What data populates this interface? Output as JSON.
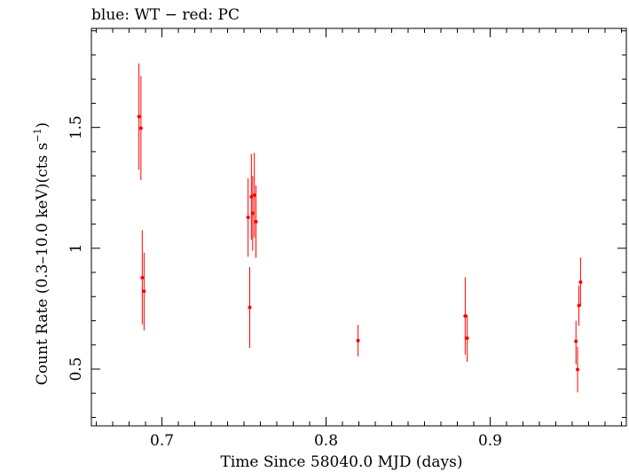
{
  "chart_data": {
    "type": "scatter",
    "title": "blue: WT − red: PC",
    "xlabel": "Time Since 58040.0 MJD (days)",
    "ylabel_main": "Count Rate (0.3–10.0 keV)(cts s",
    "ylabel_sup": "−1",
    "ylabel_close": ")",
    "xlim": [
      0.657,
      0.983
    ],
    "ylim": [
      0.265,
      1.91
    ],
    "xticks": [
      {
        "v": 0.7,
        "label": "0.7"
      },
      {
        "v": 0.8,
        "label": "0.8"
      },
      {
        "v": 0.9,
        "label": "0.9"
      }
    ],
    "yticks": [
      {
        "v": 0.5,
        "label": "0.5"
      },
      {
        "v": 1.0,
        "label": "1"
      },
      {
        "v": 1.5,
        "label": "1.5"
      }
    ],
    "series": [
      {
        "name": "PC",
        "color": "#ff0000",
        "points": [
          {
            "x": 0.686,
            "y": 1.545,
            "lo": 1.325,
            "hi": 1.765
          },
          {
            "x": 0.6872,
            "y": 1.497,
            "lo": 1.282,
            "hi": 1.712
          },
          {
            "x": 0.688,
            "y": 0.878,
            "lo": 0.685,
            "hi": 1.075
          },
          {
            "x": 0.6891,
            "y": 0.822,
            "lo": 0.66,
            "hi": 0.982
          },
          {
            "x": 0.7525,
            "y": 1.128,
            "lo": 0.965,
            "hi": 1.29
          },
          {
            "x": 0.7535,
            "y": 0.755,
            "lo": 0.588,
            "hi": 0.922
          },
          {
            "x": 0.7545,
            "y": 1.213,
            "lo": 1.035,
            "hi": 1.39
          },
          {
            "x": 0.7553,
            "y": 1.145,
            "lo": 0.99,
            "hi": 1.3
          },
          {
            "x": 0.7563,
            "y": 1.22,
            "lo": 1.045,
            "hi": 1.395
          },
          {
            "x": 0.7573,
            "y": 1.11,
            "lo": 0.96,
            "hi": 1.26
          },
          {
            "x": 0.8195,
            "y": 0.618,
            "lo": 0.553,
            "hi": 0.683
          },
          {
            "x": 0.8848,
            "y": 0.72,
            "lo": 0.56,
            "hi": 0.88
          },
          {
            "x": 0.886,
            "y": 0.628,
            "lo": 0.53,
            "hi": 0.726
          },
          {
            "x": 0.9523,
            "y": 0.615,
            "lo": 0.52,
            "hi": 0.7
          },
          {
            "x": 0.9533,
            "y": 0.498,
            "lo": 0.403,
            "hi": 0.593
          },
          {
            "x": 0.9541,
            "y": 0.763,
            "lo": 0.68,
            "hi": 0.846
          },
          {
            "x": 0.9551,
            "y": 0.86,
            "lo": 0.76,
            "hi": 0.962
          }
        ]
      }
    ]
  }
}
